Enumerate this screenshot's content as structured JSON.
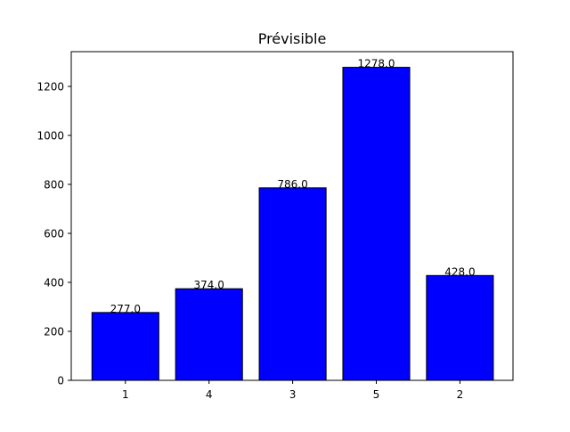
{
  "chart_data": {
    "type": "bar",
    "title": "Prévisible",
    "categories": [
      "1",
      "4",
      "3",
      "5",
      "2"
    ],
    "values": [
      277.0,
      374.0,
      786.0,
      1278.0,
      428.0
    ],
    "data_labels": [
      "277.0",
      "374.0",
      "786.0",
      "1278.0",
      "428.0"
    ],
    "xlabel": "",
    "ylabel": "",
    "ylim": [
      0,
      1341.9
    ],
    "yticks": [
      0,
      200,
      400,
      600,
      800,
      1000,
      1200
    ],
    "grid": false,
    "bar_color": "#0000ff",
    "edge_color": "#000000"
  }
}
